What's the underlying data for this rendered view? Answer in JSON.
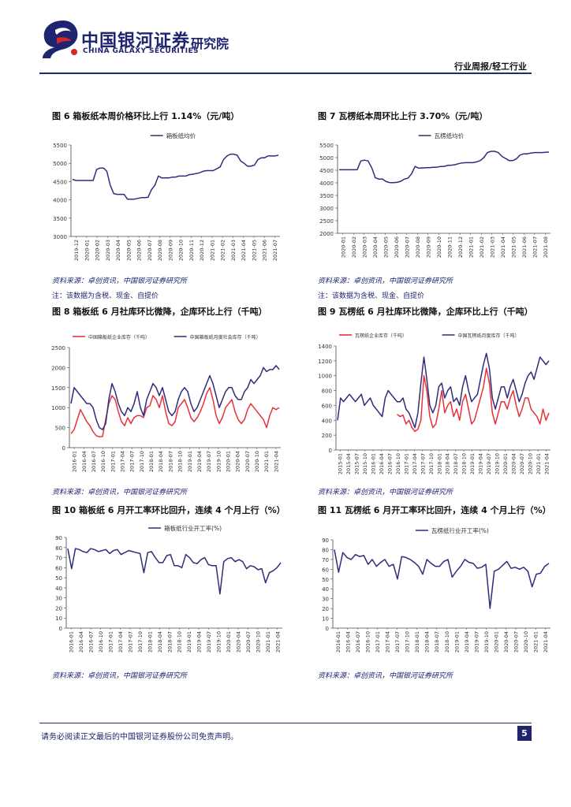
{
  "header": {
    "brand_cn": "中国银河证券",
    "brand_en": "CHINA GALAXY SECURITIES",
    "institute": "研究院",
    "report_type": "行业周报/轻工行业"
  },
  "figures": {
    "fig6": {
      "title": "图 6 箱板纸本周价格环比上行 1.14%（元/吨）",
      "source": "资料来源：卓创资讯，中国银河证券研究所",
      "note": "注：该数据为含税、现金、自提价"
    },
    "fig7": {
      "title": "图 7 瓦楞纸本周环比上行 3.70%（元/吨）",
      "source": "资料来源：卓创资讯，中国银河证券研究所",
      "note": "注：该数据为含税、现金、自提价"
    },
    "fig8": {
      "title": "图 8 箱板纸 6 月社库环比微降，企库环比上行（千吨）",
      "source": "资料来源：卓创资讯，中国银河证券研究所"
    },
    "fig9": {
      "title": "图 9 瓦楞纸 6 月社库环比微降，企库环比上行（千吨）",
      "source": "资料来源：卓创资讯，中国银河证券研究所"
    },
    "fig10": {
      "title": "图 10 箱板纸 6 月开工率环比回升，连续 4 个月上行（%）",
      "source": "资料来源：卓创资讯，中国银河证券研究所"
    },
    "fig11": {
      "title": "图 11 瓦楞纸 6 月开工率环比回升，连续 4 个月上行（%）",
      "source": "资料来源：卓创资讯，中国银河证券研究所"
    }
  },
  "footer": {
    "disclaimer": "请务必阅读正文最后的中国银河证券股份公司免责声明。",
    "page": "5"
  },
  "colors": {
    "navy": "#2e2d7a",
    "red": "#e8313a",
    "brand": "#1e2470"
  },
  "chart_data": [
    {
      "id": "fig6",
      "type": "line",
      "legend": [
        "箱板纸均价"
      ],
      "ylim": [
        3000,
        5500
      ],
      "yticks": [
        "3000",
        "3500",
        "4000",
        "4500",
        "5000",
        "5500"
      ],
      "xticks": [
        "2019-12",
        "2020-01",
        "2020-02",
        "2020-03",
        "2020-04",
        "2020-05",
        "2020-06",
        "2020-07",
        "2020-08",
        "2020-09",
        "2020-10",
        "2020-11",
        "2020-12",
        "2021-01",
        "2021-02",
        "2021-03",
        "2021-04",
        "2021-05",
        "2021-06",
        "2021-07"
      ],
      "series": [
        {
          "name": "箱板纸均价",
          "values": [
            4560,
            4530,
            4530,
            4530,
            4530,
            4530,
            4530,
            4830,
            4870,
            4870,
            4780,
            4400,
            4170,
            4150,
            4150,
            4150,
            4020,
            4020,
            4020,
            4040,
            4060,
            4060,
            4070,
            4280,
            4400,
            4650,
            4600,
            4600,
            4600,
            4620,
            4620,
            4650,
            4650,
            4650,
            4690,
            4700,
            4720,
            4740,
            4780,
            4800,
            4800,
            4800,
            4850,
            4900,
            5100,
            5200,
            5250,
            5250,
            5220,
            5060,
            5000,
            4920,
            4920,
            4950,
            5100,
            5150,
            5150,
            5200,
            5200,
            5200,
            5220
          ]
        }
      ]
    },
    {
      "id": "fig7",
      "type": "line",
      "legend": [
        "瓦楞纸均价"
      ],
      "ylim": [
        2000,
        5500
      ],
      "yticks": [
        "2000",
        "2500",
        "3000",
        "3500",
        "4000",
        "4500",
        "5000",
        "5500"
      ],
      "xticks": [
        "2020-01",
        "2020-02",
        "2020-03",
        "2020-04",
        "2020-05",
        "2020-06",
        "2020-07",
        "2020-08",
        "2020-09",
        "2020-10",
        "2020-11",
        "2020-12",
        "2021-01",
        "2021-02",
        "2021-03",
        "2021-04",
        "2021-05",
        "2021-06",
        "2021-07",
        "2021-08"
      ],
      "series": [
        {
          "name": "瓦楞纸均价",
          "values": [
            4520,
            4520,
            4520,
            4520,
            4520,
            4520,
            4870,
            4900,
            4870,
            4600,
            4200,
            4150,
            4150,
            4050,
            4010,
            4010,
            4020,
            4060,
            4150,
            4180,
            4350,
            4650,
            4580,
            4590,
            4600,
            4600,
            4620,
            4620,
            4650,
            4650,
            4690,
            4700,
            4720,
            4760,
            4790,
            4800,
            4800,
            4800,
            4830,
            4880,
            5000,
            5200,
            5250,
            5250,
            5200,
            5050,
            4970,
            4880,
            4880,
            4950,
            5100,
            5150,
            5150,
            5180,
            5200,
            5200,
            5200,
            5210,
            5220
          ]
        }
      ]
    },
    {
      "id": "fig8",
      "type": "line",
      "legend": [
        "中国箱板纸企业库存（千吨）",
        "中国箱板纸月度社会库存（千吨）"
      ],
      "ylim": [
        0,
        2500
      ],
      "yticks": [
        "0",
        "500",
        "1000",
        "1500",
        "2000",
        "2500"
      ],
      "xticks": [
        "2016-01",
        "2016-04",
        "2016-07",
        "2016-10",
        "2017-01",
        "2017-04",
        "2017-07",
        "2017-10",
        "2018-01",
        "2018-04",
        "2018-07",
        "2018-10",
        "2019-01",
        "2019-04",
        "2019-07",
        "2019-10",
        "2020-01",
        "2020-04",
        "2020-07",
        "2020-10",
        "2021-01",
        "2021-04"
      ],
      "series": [
        {
          "name": "中国箱板纸企业库存（千吨）",
          "color": "red",
          "values": [
            350,
            450,
            700,
            950,
            800,
            650,
            550,
            400,
            300,
            270,
            280,
            700,
            1100,
            1300,
            1200,
            900,
            650,
            550,
            750,
            600,
            750,
            800,
            800,
            750,
            1000,
            1050,
            1300,
            1200,
            1000,
            1300,
            900,
            600,
            550,
            650,
            1000,
            1100,
            1200,
            1000,
            750,
            650,
            750,
            900,
            1100,
            1350,
            1500,
            1200,
            800,
            600,
            750,
            1000,
            1100,
            1200,
            900,
            700,
            600,
            700,
            950,
            1100,
            1000,
            900,
            800,
            700,
            500,
            800,
            1000,
            950,
            1000
          ]
        },
        {
          "name": "中国箱板纸月度社会库存（千吨）",
          "color": "navy",
          "values": [
            1100,
            1500,
            1400,
            1300,
            1200,
            1100,
            1100,
            1000,
            700,
            500,
            450,
            600,
            1200,
            1600,
            1400,
            1100,
            900,
            800,
            1000,
            900,
            1100,
            1400,
            1000,
            800,
            1200,
            1400,
            1600,
            1500,
            1300,
            1500,
            1200,
            900,
            800,
            900,
            1200,
            1400,
            1500,
            1400,
            1100,
            900,
            1000,
            1200,
            1400,
            1600,
            1800,
            1600,
            1300,
            1000,
            1200,
            1400,
            1500,
            1500,
            1300,
            1200,
            1200,
            1400,
            1500,
            1700,
            1600,
            1700,
            1800,
            2000,
            1900,
            1950,
            1950,
            2050,
            1950
          ]
        }
      ]
    },
    {
      "id": "fig9",
      "type": "line",
      "legend": [
        "瓦楞纸企业库存（千吨）",
        "中国瓦楞纸月度库存（千吨）"
      ],
      "ylim": [
        0,
        1400
      ],
      "yticks": [
        "0",
        "200",
        "400",
        "600",
        "800",
        "1000",
        "1200",
        "1400"
      ],
      "xticks": [
        "2015-01",
        "2015-04",
        "2015-07",
        "2015-10",
        "2016-01",
        "2016-04",
        "2016-07",
        "2016-10",
        "2017-01",
        "2017-04",
        "2017-07",
        "2017-10",
        "2018-01",
        "2018-04",
        "2018-07",
        "2018-10",
        "2019-01",
        "2019-04",
        "2019-07",
        "2019-10",
        "2020-01",
        "2020-04",
        "2020-07",
        "2020-10",
        "2021-01",
        "2021-04"
      ],
      "series": [
        {
          "name": "瓦楞纸企业库存（千吨）",
          "color": "red",
          "values": [
            null,
            null,
            null,
            null,
            null,
            null,
            null,
            null,
            null,
            null,
            null,
            null,
            null,
            null,
            null,
            null,
            null,
            null,
            null,
            null,
            480,
            450,
            470,
            350,
            400,
            300,
            250,
            280,
            400,
            1000,
            800,
            450,
            300,
            350,
            550,
            800,
            500,
            600,
            650,
            450,
            550,
            400,
            650,
            750,
            550,
            350,
            400,
            550,
            700,
            850,
            1100,
            900,
            500,
            350,
            500,
            650,
            650,
            550,
            700,
            800,
            600,
            450,
            550,
            700,
            700,
            550,
            500,
            450,
            350,
            550,
            400,
            500
          ]
        },
        {
          "name": "中国瓦楞纸月度库存（千吨）",
          "color": "navy",
          "values": [
            400,
            700,
            650,
            700,
            750,
            700,
            650,
            700,
            750,
            600,
            650,
            700,
            600,
            550,
            500,
            450,
            700,
            800,
            750,
            700,
            650,
            650,
            700,
            550,
            500,
            400,
            300,
            500,
            900,
            1250,
            950,
            600,
            500,
            600,
            850,
            900,
            700,
            800,
            850,
            650,
            700,
            600,
            850,
            1000,
            800,
            650,
            700,
            750,
            950,
            1150,
            1300,
            1100,
            700,
            550,
            700,
            850,
            850,
            700,
            850,
            950,
            800,
            650,
            750,
            900,
            1000,
            1050,
            950,
            1100,
            1250,
            1200,
            1150,
            1200
          ]
        }
      ]
    },
    {
      "id": "fig10",
      "type": "line",
      "legend": [
        "箱板纸行业开工率(%)"
      ],
      "ylim": [
        0,
        90
      ],
      "yticks": [
        "0",
        "10",
        "20",
        "30",
        "40",
        "50",
        "60",
        "70",
        "80",
        "90"
      ],
      "xticks": [
        "2016-01",
        "2016-04",
        "2016-07",
        "2016-10",
        "2017-01",
        "2017-04",
        "2017-07",
        "2017-10",
        "2018-01",
        "2018-04",
        "2018-07",
        "2018-10",
        "2019-01",
        "2019-04",
        "2019-07",
        "2019-10",
        "2020-01",
        "2020-04",
        "2020-07",
        "2020-10",
        "2021-01",
        "2021-04"
      ],
      "series": [
        {
          "name": "箱板纸行业开工率(%)",
          "values": [
            79,
            59,
            79,
            78,
            76,
            75,
            79,
            78,
            76,
            77,
            78,
            74,
            77,
            78,
            73,
            75,
            77,
            76,
            75,
            74,
            55,
            75,
            76,
            70,
            65,
            65,
            72,
            73,
            62,
            62,
            60,
            73,
            70,
            65,
            64,
            68,
            70,
            63,
            62,
            62,
            34,
            66,
            69,
            70,
            66,
            68,
            66,
            59,
            62,
            61,
            58,
            59,
            45,
            55,
            57,
            60,
            65
          ]
        }
      ]
    },
    {
      "id": "fig11",
      "type": "line",
      "legend": [
        "瓦楞纸行业开工率(%)"
      ],
      "ylim": [
        0,
        90
      ],
      "yticks": [
        "0",
        "10",
        "20",
        "30",
        "40",
        "50",
        "60",
        "70",
        "80",
        "90"
      ],
      "xticks": [
        "2016-01",
        "2016-04",
        "2016-07",
        "2016-10",
        "2017-01",
        "2017-04",
        "2017-07",
        "2017-10",
        "2018-01",
        "2018-04",
        "2018-07",
        "2018-10",
        "2019-01",
        "2019-04",
        "2019-07",
        "2019-10",
        "2020-01",
        "2020-04",
        "2020-07",
        "2020-10",
        "2021-01",
        "2021-04"
      ],
      "series": [
        {
          "name": "瓦楞纸行业开工率(%)",
          "values": [
            80,
            57,
            77,
            72,
            70,
            75,
            73,
            74,
            65,
            70,
            63,
            67,
            70,
            63,
            65,
            50,
            73,
            72,
            70,
            67,
            63,
            55,
            70,
            66,
            63,
            63,
            68,
            70,
            52,
            58,
            63,
            70,
            67,
            66,
            61,
            62,
            65,
            20,
            58,
            60,
            64,
            68,
            61,
            62,
            60,
            62,
            58,
            42,
            55,
            56,
            63,
            66
          ]
        }
      ]
    }
  ]
}
